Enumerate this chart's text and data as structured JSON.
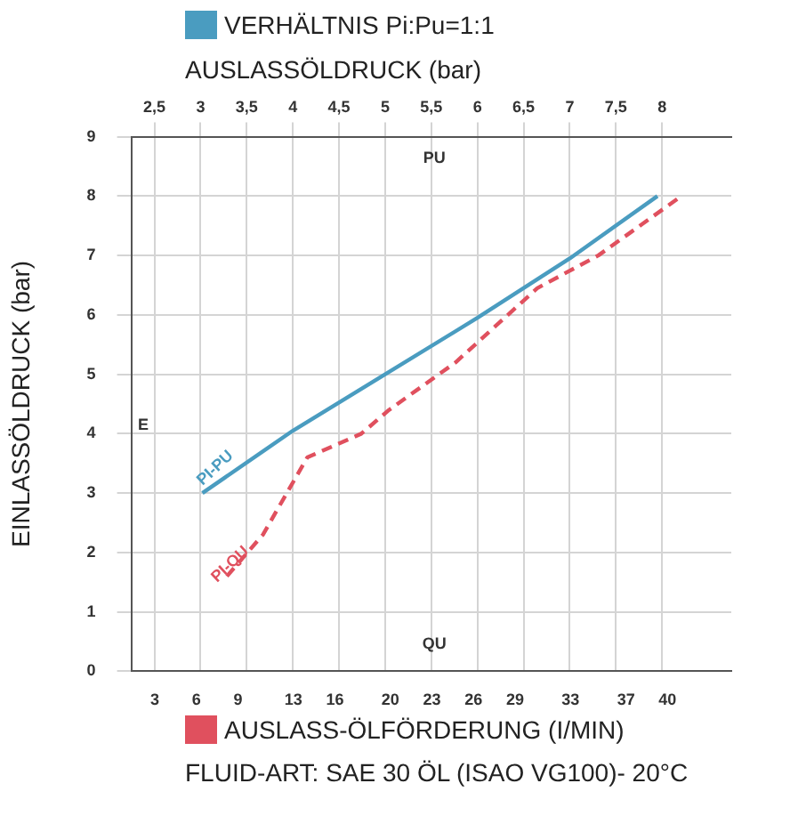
{
  "chart_data": {
    "type": "line",
    "xlabel": "AUSLASS-ÖLFÖRDERUNG (I/MIN)",
    "x2label": "AUSLASSÖLDRUCK (bar)",
    "ylabel": "EINLASSÖLDRUCK (bar)",
    "xlim": [
      1.3,
      44.6
    ],
    "xticks": [
      3,
      6,
      9,
      13,
      16,
      20,
      23,
      26,
      29,
      33,
      37,
      40
    ],
    "x2lim": [
      2.25,
      8.75
    ],
    "x2ticks": [
      {
        "value": 2.5,
        "label": "2,5"
      },
      3,
      {
        "value": 3.5,
        "label": "3,5"
      },
      4,
      {
        "value": 4.5,
        "label": "4,5"
      },
      5,
      {
        "value": 5.5,
        "label": "5,5"
      },
      6,
      {
        "value": 6.5,
        "label": "6,5"
      },
      7,
      {
        "value": 7.5,
        "label": "7,5"
      },
      8
    ],
    "ylim": [
      0,
      9
    ],
    "yticks": [
      0,
      1,
      2,
      3,
      4,
      5,
      6,
      7,
      8,
      9
    ],
    "series": [
      {
        "name": "VERHÄLTNIS Pi:Pu=1:1",
        "color": "#4a9cc0",
        "axis": "x2",
        "line_style": "solid",
        "x": [
          3.02,
          4.0,
          5.0,
          6.0,
          7.0,
          7.95
        ],
        "values": [
          3.0,
          4.05,
          5.0,
          5.95,
          6.95,
          8.0
        ]
      },
      {
        "color": "#e0505e",
        "line_style": "dashed",
        "x": [
          8.2,
          10.8,
          14.0,
          17.9,
          19.9,
          24.7,
          30.6,
          35.0,
          41.0
        ],
        "values": [
          1.6,
          2.3,
          3.6,
          4.0,
          4.4,
          5.2,
          6.45,
          7.0,
          8.0
        ]
      }
    ],
    "grid": true,
    "legend": "top left",
    "marker": "none",
    "annotations": [
      "PI-PU",
      "PI-QU",
      "PU",
      "QU",
      "E",
      "FLUID-ART: SAE 30 ÖL (ISAO VG100)- 20°C"
    ]
  }
}
